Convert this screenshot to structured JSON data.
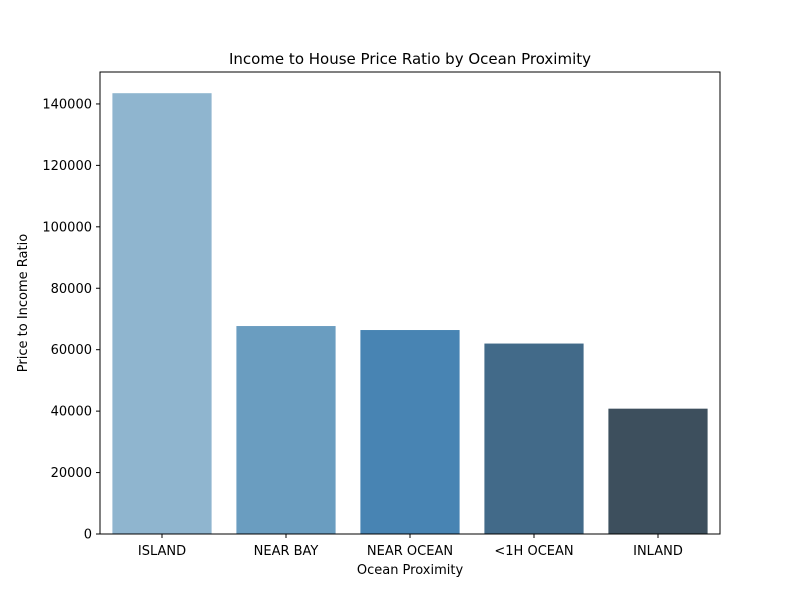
{
  "chart_data": {
    "type": "bar",
    "title": "Income to House Price Ratio by Ocean Proximity",
    "xlabel": "Ocean Proximity",
    "ylabel": "Price to Income Ratio",
    "categories": [
      "ISLAND",
      "NEAR BAY",
      "NEAR OCEAN",
      "<1H OCEAN",
      "INLAND"
    ],
    "values": [
      143500,
      67700,
      66400,
      62000,
      40800
    ],
    "colors": [
      "#8fb5cf",
      "#6a9dc0",
      "#4884b3",
      "#426a89",
      "#3d4f5d"
    ],
    "ylim": [
      0,
      150400
    ],
    "yticks": [
      0,
      20000,
      40000,
      60000,
      80000,
      100000,
      120000,
      140000
    ],
    "grid": false,
    "legend": "none"
  }
}
